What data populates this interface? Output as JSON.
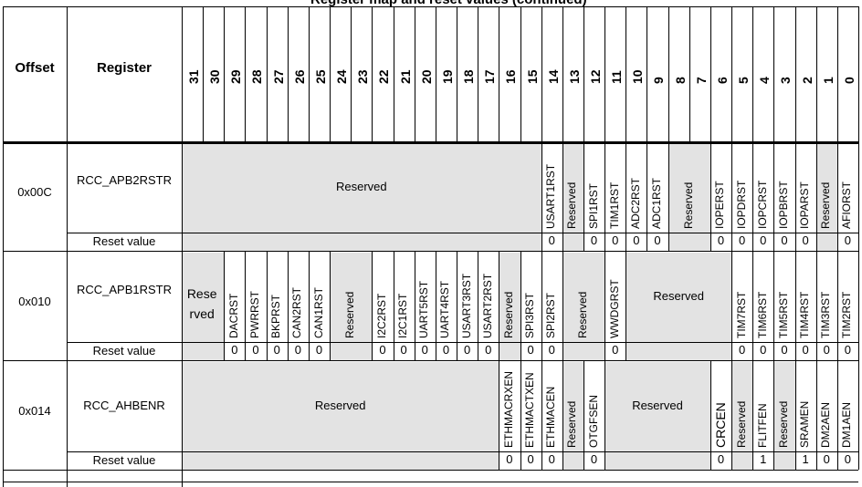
{
  "title": "Register map and reset values (continued)",
  "header": {
    "offset": "Offset",
    "register": "Register"
  },
  "bits": [
    "31",
    "30",
    "29",
    "28",
    "27",
    "26",
    "25",
    "24",
    "23",
    "22",
    "21",
    "20",
    "19",
    "18",
    "17",
    "16",
    "15",
    "14",
    "13",
    "12",
    "11",
    "10",
    "9",
    "8",
    "7",
    "6",
    "5",
    "4",
    "3",
    "2",
    "1",
    "0"
  ],
  "reset_label": "Reset value",
  "rows": [
    {
      "offset": "0x00C",
      "register": "RCC_APB2RSTR",
      "fields": [
        {
          "hi": 31,
          "lo": 15,
          "name": "Reserved",
          "reserved": true
        },
        {
          "hi": 14,
          "lo": 14,
          "name": "USART1RST"
        },
        {
          "hi": 13,
          "lo": 13,
          "name": "Reserved",
          "reserved": true
        },
        {
          "hi": 12,
          "lo": 12,
          "name": "SPI1RST"
        },
        {
          "hi": 11,
          "lo": 11,
          "name": "TIM1RST"
        },
        {
          "hi": 10,
          "lo": 10,
          "name": "ADC2RST"
        },
        {
          "hi": 9,
          "lo": 9,
          "name": "ADC1RST"
        },
        {
          "hi": 8,
          "lo": 7,
          "name": "Reserved",
          "reserved": true
        },
        {
          "hi": 6,
          "lo": 6,
          "name": "IOPERST"
        },
        {
          "hi": 5,
          "lo": 5,
          "name": "IOPDRST"
        },
        {
          "hi": 4,
          "lo": 4,
          "name": "IOPCRST"
        },
        {
          "hi": 3,
          "lo": 3,
          "name": "IOPBRST"
        },
        {
          "hi": 2,
          "lo": 2,
          "name": "IOPARST"
        },
        {
          "hi": 1,
          "lo": 1,
          "name": "Reserved",
          "reserved": true
        },
        {
          "hi": 0,
          "lo": 0,
          "name": "AFIORST"
        }
      ],
      "reset": {
        "14": "0",
        "12": "0",
        "11": "0",
        "10": "0",
        "9": "0",
        "6": "0",
        "5": "0",
        "4": "0",
        "3": "0",
        "2": "0",
        "0": "0"
      }
    },
    {
      "offset": "0x010",
      "register": "RCC_APB1RSTR",
      "fields": [
        {
          "hi": 31,
          "lo": 30,
          "name": "Rese rved",
          "reserved": true,
          "wrap": true
        },
        {
          "hi": 29,
          "lo": 29,
          "name": "DACRST"
        },
        {
          "hi": 28,
          "lo": 28,
          "name": "PWRRST"
        },
        {
          "hi": 27,
          "lo": 27,
          "name": "BKPRST"
        },
        {
          "hi": 26,
          "lo": 26,
          "name": "CAN2RST"
        },
        {
          "hi": 25,
          "lo": 25,
          "name": "CAN1RST"
        },
        {
          "hi": 24,
          "lo": 23,
          "name": "Reserved",
          "reserved": true,
          "vertical": true
        },
        {
          "hi": 22,
          "lo": 22,
          "name": "I2C2RST"
        },
        {
          "hi": 21,
          "lo": 21,
          "name": "I2C1RST"
        },
        {
          "hi": 20,
          "lo": 20,
          "name": "UART5RST"
        },
        {
          "hi": 19,
          "lo": 19,
          "name": "UART4RST"
        },
        {
          "hi": 18,
          "lo": 18,
          "name": "USART3RST"
        },
        {
          "hi": 17,
          "lo": 17,
          "name": "USART2RST"
        },
        {
          "hi": 16,
          "lo": 16,
          "name": "Reserved",
          "reserved": true
        },
        {
          "hi": 15,
          "lo": 15,
          "name": "SPI3RST"
        },
        {
          "hi": 14,
          "lo": 14,
          "name": "SPI2RST"
        },
        {
          "hi": 13,
          "lo": 12,
          "name": "Reserved",
          "reserved": true,
          "vertical": true
        },
        {
          "hi": 11,
          "lo": 11,
          "name": "WWDGRST"
        },
        {
          "hi": 10,
          "lo": 6,
          "name": "Reserved",
          "reserved": true
        },
        {
          "hi": 5,
          "lo": 5,
          "name": "TIM7RST"
        },
        {
          "hi": 4,
          "lo": 4,
          "name": "TIM6RST"
        },
        {
          "hi": 3,
          "lo": 3,
          "name": "TIM5RST"
        },
        {
          "hi": 2,
          "lo": 2,
          "name": "TIM4RST"
        },
        {
          "hi": 1,
          "lo": 1,
          "name": "TIM3RST"
        },
        {
          "hi": 0,
          "lo": 0,
          "name": "TIM2RST"
        }
      ],
      "reset": {
        "29": "0",
        "28": "0",
        "27": "0",
        "26": "0",
        "25": "0",
        "22": "0",
        "21": "0",
        "20": "0",
        "19": "0",
        "18": "0",
        "17": "0",
        "15": "0",
        "14": "0",
        "11": "0",
        "5": "0",
        "4": "0",
        "3": "0",
        "2": "0",
        "1": "0",
        "0": "0"
      }
    },
    {
      "offset": "0x014",
      "register": "RCC_AHBENR",
      "fields": [
        {
          "hi": 31,
          "lo": 17,
          "name": "Reserved",
          "reserved": true
        },
        {
          "hi": 16,
          "lo": 16,
          "name": "ETHMACRXEN"
        },
        {
          "hi": 15,
          "lo": 15,
          "name": "ETHMACTXEN"
        },
        {
          "hi": 14,
          "lo": 14,
          "name": "ETHMACEN"
        },
        {
          "hi": 13,
          "lo": 13,
          "name": "Reserved",
          "reserved": true
        },
        {
          "hi": 12,
          "lo": 12,
          "name": "OTGFSEN"
        },
        {
          "hi": 11,
          "lo": 7,
          "name": "Reserved",
          "reserved": true
        },
        {
          "hi": 6,
          "lo": 6,
          "name": "CRCEN",
          "big": true
        },
        {
          "hi": 5,
          "lo": 5,
          "name": "Reserved",
          "reserved": true
        },
        {
          "hi": 4,
          "lo": 4,
          "name": "FLITFEN"
        },
        {
          "hi": 3,
          "lo": 3,
          "name": "Reserved",
          "reserved": true
        },
        {
          "hi": 2,
          "lo": 2,
          "name": "SRAMEN"
        },
        {
          "hi": 1,
          "lo": 1,
          "name": "DM2AEN"
        },
        {
          "hi": 0,
          "lo": 0,
          "name": "DM1AEN"
        }
      ],
      "reset": {
        "16": "0",
        "15": "0",
        "14": "0",
        "12": "0",
        "6": "0",
        "4": "1",
        "2": "1",
        "1": "0",
        "0": "0"
      }
    }
  ]
}
